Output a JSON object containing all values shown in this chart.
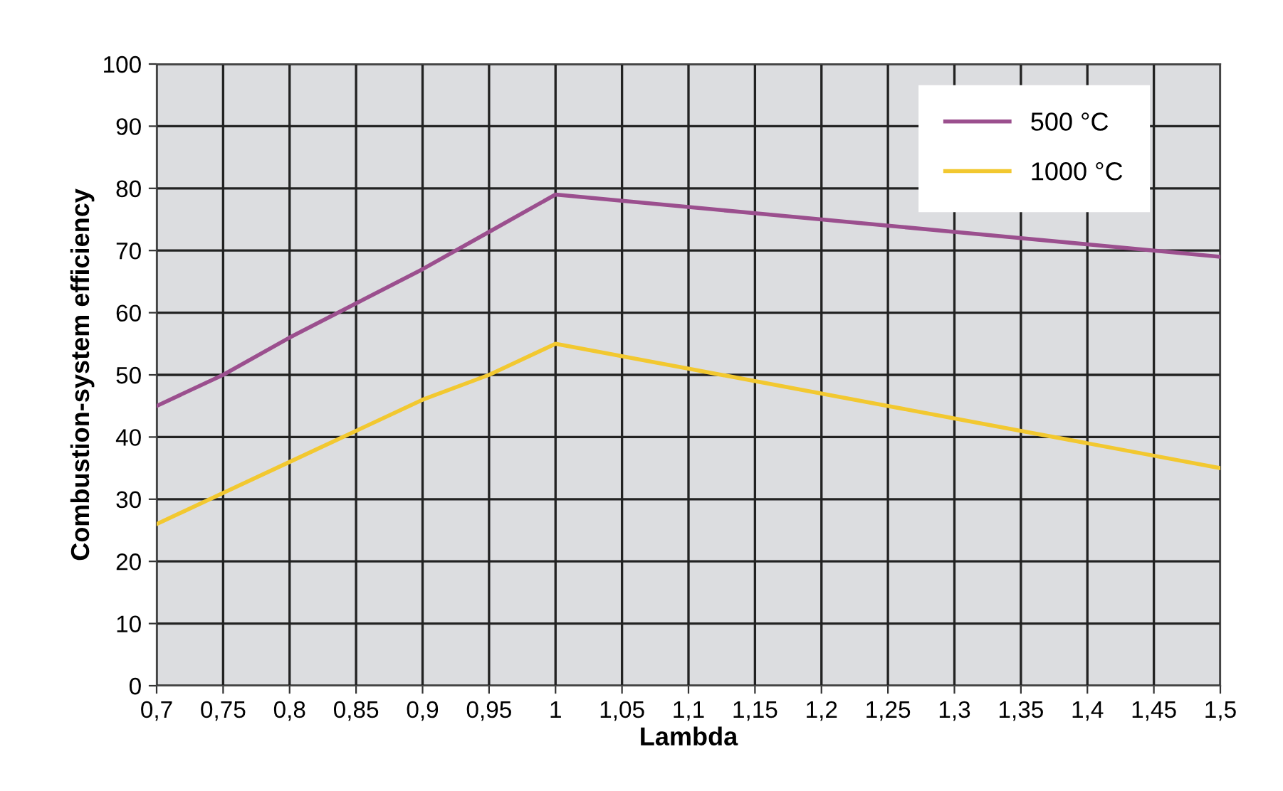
{
  "chart_data": {
    "type": "line",
    "xlabel": "Lambda",
    "ylabel": "Combustion-system efficiency",
    "x": [
      0.7,
      0.75,
      0.8,
      0.85,
      0.9,
      0.95,
      1,
      1.05,
      1.1,
      1.15,
      1.2,
      1.25,
      1.3,
      1.35,
      1.4,
      1.45,
      1.5
    ],
    "series": [
      {
        "name": "500 °C",
        "color": "#9b4f8e",
        "values": [
          45,
          50,
          56,
          61.5,
          67,
          73,
          79,
          78,
          77,
          76,
          75,
          74,
          73,
          72,
          71,
          70,
          69
        ]
      },
      {
        "name": "1000 °C",
        "color": "#f2c830",
        "values": [
          26,
          31,
          36,
          41,
          46,
          50,
          55,
          53,
          51,
          49,
          47,
          45,
          43,
          41,
          39,
          37,
          35
        ]
      }
    ],
    "xlim": [
      0.7,
      1.5
    ],
    "xticks": [
      {
        "value": 0.7,
        "label": "0,7"
      },
      {
        "value": 0.75,
        "label": "0,75"
      },
      {
        "value": 0.8,
        "label": "0,8"
      },
      {
        "value": 0.85,
        "label": "0,85"
      },
      {
        "value": 0.9,
        "label": "0,9"
      },
      {
        "value": 0.95,
        "label": "0,95"
      },
      1,
      {
        "value": 1.05,
        "label": "1,05"
      },
      {
        "value": 1.1,
        "label": "1,1"
      },
      {
        "value": 1.15,
        "label": "1,15"
      },
      {
        "value": 1.2,
        "label": "1,2"
      },
      {
        "value": 1.25,
        "label": "1,25"
      },
      {
        "value": 1.3,
        "label": "1,3"
      },
      {
        "value": 1.35,
        "label": "1,35"
      },
      {
        "value": 1.4,
        "label": "1,4"
      },
      {
        "value": 1.45,
        "label": "1,45"
      },
      {
        "value": 1.5,
        "label": "1,5"
      }
    ],
    "ylim": [
      0,
      100
    ],
    "yticks": [
      0,
      10,
      20,
      30,
      40,
      50,
      60,
      70,
      80,
      90,
      100
    ],
    "grid": true,
    "legend": "top right",
    "marker": "none",
    "line_style": "solid"
  }
}
